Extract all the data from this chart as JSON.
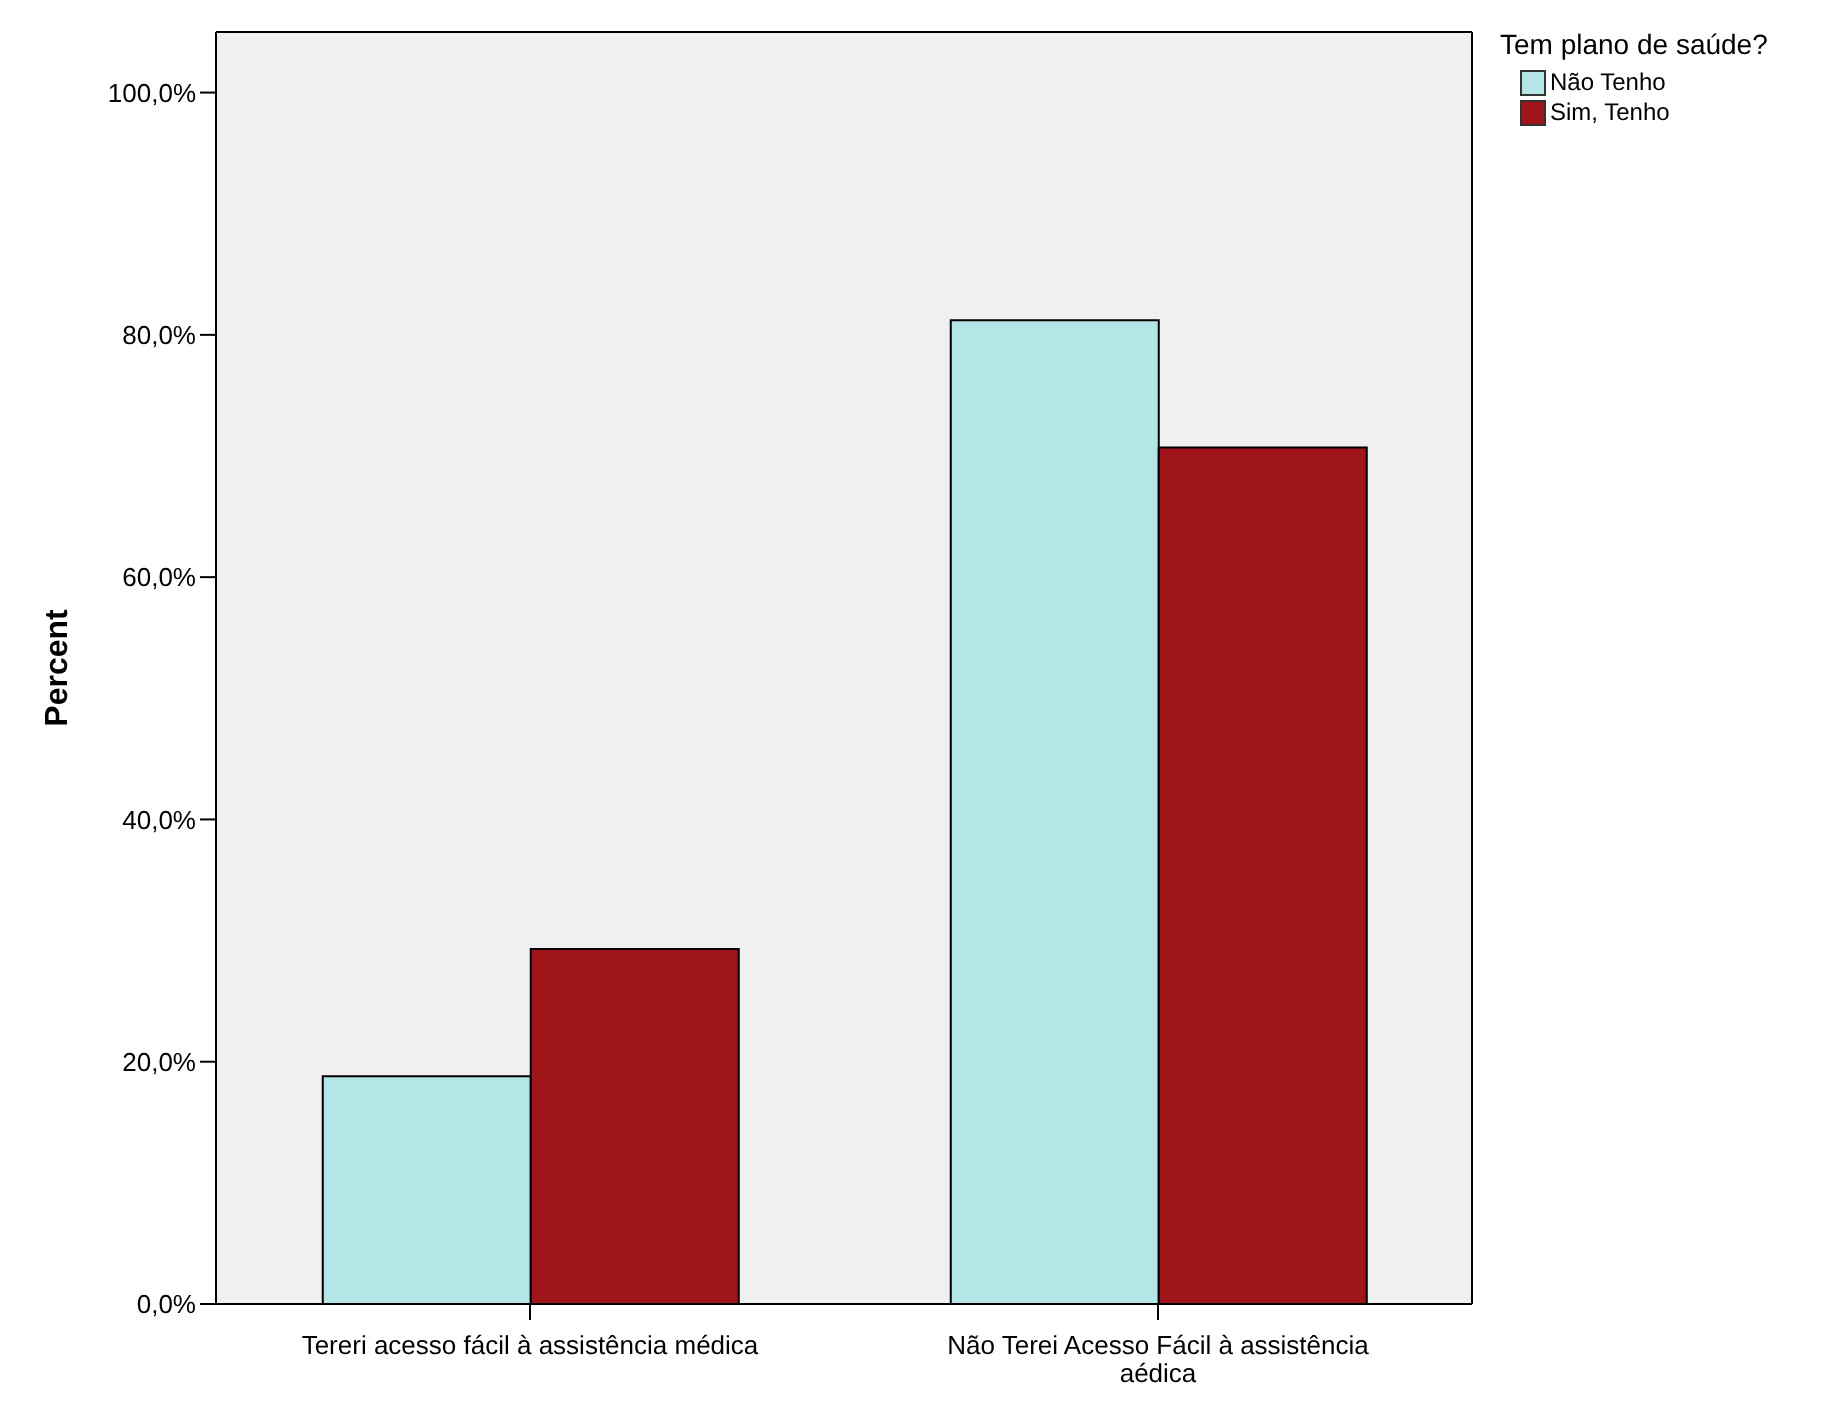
{
  "chart_data": {
    "type": "bar",
    "ylabel": "Percent",
    "legend_title": "Tem plano de saúde?",
    "legend": "top right",
    "grid": false,
    "categories": [
      "Tereri acesso fácil à assistência médica",
      "Não Terei Acesso Fácil à assistência aédica"
    ],
    "series": [
      {
        "name": "Não Tenho",
        "color": "#b4e5e7",
        "values": [
          18.8,
          81.2
        ]
      },
      {
        "name": "Sim, Tenho",
        "color": "#a0151a",
        "values": [
          29.3,
          70.7
        ]
      }
    ],
    "ylim": [
      0,
      105
    ],
    "yticks": [
      {
        "value": 0,
        "label": "0,0%"
      },
      {
        "value": 20,
        "label": "20,0%"
      },
      {
        "value": 40,
        "label": "40,0%"
      },
      {
        "value": 60,
        "label": "60,0%"
      },
      {
        "value": 80,
        "label": "80,0%"
      },
      {
        "value": 100,
        "label": "100,0%"
      }
    ]
  }
}
